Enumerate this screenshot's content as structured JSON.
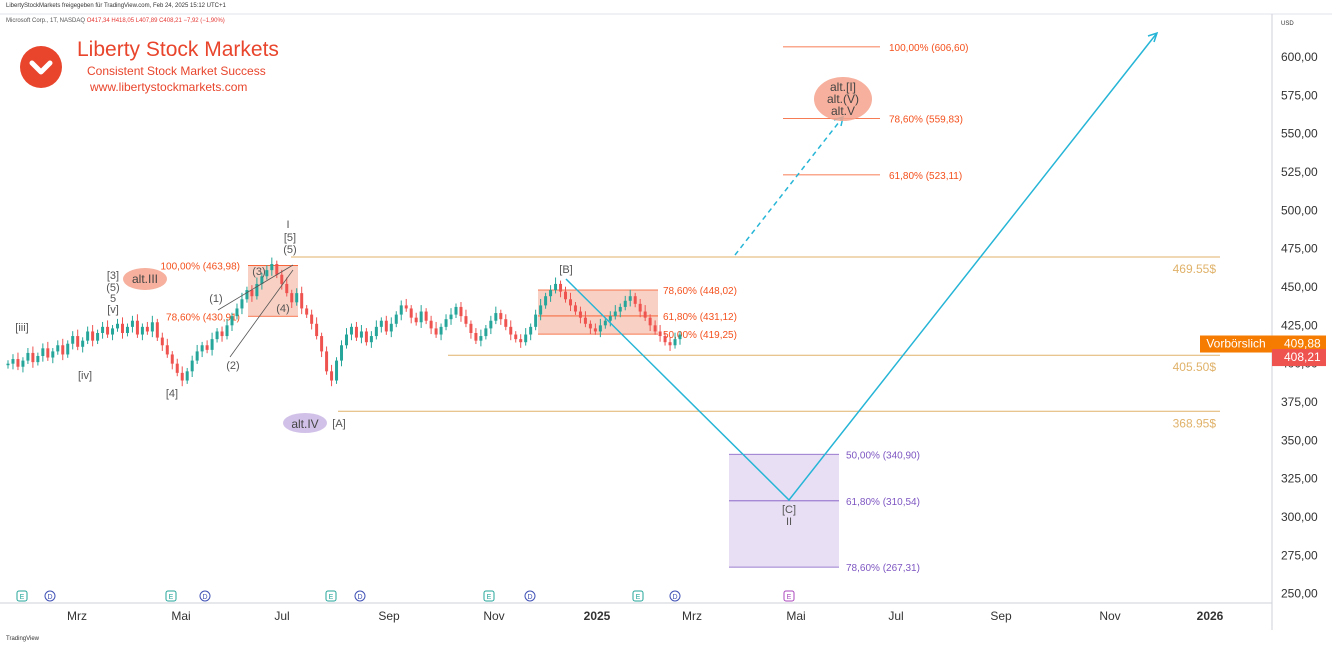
{
  "header": {
    "share_text": "LibertyStockMarkets freigegeben für TradingView.com, Feb 24, 2025 15:12 UTC+1",
    "symbol_text": "Microsoft Corp., 1T, NASDAQ",
    "ohlc_text": "O417,34 H418,05 L407,89 C408,21 −7,92 (−1,90%)"
  },
  "brand": {
    "title": "Liberty Stock Markets",
    "subtitle": "Consistent Stock Market Success",
    "url": "www.libertystockmarkets.com",
    "color": "#e8452c"
  },
  "footer": {
    "tv_label": "TradingView"
  },
  "colors": {
    "up": "#26a69a",
    "down": "#ef5350",
    "projection": "#26b5d6",
    "orange_line": "#e0b26a",
    "fib_red": "#f4511e",
    "fib_purple": "#7e57c2",
    "price_orange": "#f57c00",
    "price_red": "#ef5350"
  },
  "chart_data": {
    "type": "candlestick",
    "currency": "USD",
    "x_ticks": [
      "Mrz",
      "Mai",
      "Jul",
      "Sep",
      "Nov",
      "2025",
      "Mrz",
      "Mai",
      "Jul",
      "Sep",
      "Nov",
      "2026"
    ],
    "y_ticks": [
      "250,00",
      "275,00",
      "300,00",
      "325,00",
      "350,00",
      "375,00",
      "400,00",
      "425,00",
      "450,00",
      "475,00",
      "500,00",
      "525,00",
      "550,00",
      "575,00",
      "600,00"
    ],
    "ylim": [
      240,
      615
    ],
    "price_labels": [
      {
        "text": "Vorbörslich",
        "value": "409,88",
        "color": "#f57c00",
        "y": 409.88
      },
      {
        "text": "",
        "value": "408,21",
        "color": "#ef5350",
        "y": 408.21
      }
    ],
    "horizontal_levels": [
      {
        "label": "469.55$",
        "y": 469.55
      },
      {
        "label": "405.50$",
        "y": 405.5
      },
      {
        "label": "368.95$",
        "y": 368.95
      }
    ],
    "fib_levels": [
      {
        "label": "100,00% (606,60)",
        "y": 606.6,
        "color": "red"
      },
      {
        "label": "78,60% (559,83)",
        "y": 559.83,
        "color": "red"
      },
      {
        "label": "61,80% (523,11)",
        "y": 523.11,
        "color": "red"
      },
      {
        "label": "100,00% (463,98)",
        "y": 463.98,
        "color": "red"
      },
      {
        "label": "78,60% (430,91)",
        "y": 430.91,
        "color": "red"
      },
      {
        "label": "78,60% (448,02)",
        "y": 448.02,
        "color": "red"
      },
      {
        "label": "61,80% (431,12)",
        "y": 431.12,
        "color": "red"
      },
      {
        "label": "50,00% (419,25)",
        "y": 419.25,
        "color": "red"
      },
      {
        "label": "50,00% (340,90)",
        "y": 340.9,
        "color": "purple"
      },
      {
        "label": "61,80% (310,54)",
        "y": 310.54,
        "color": "purple"
      },
      {
        "label": "78,60% (267,31)",
        "y": 267.31,
        "color": "purple"
      }
    ],
    "wave_labels": [
      {
        "text": "[iii]"
      },
      {
        "text": "[iv]"
      },
      {
        "text": "[3]"
      },
      {
        "text": "(5)"
      },
      {
        "text": "5"
      },
      {
        "text": "[v]"
      },
      {
        "text": "[4]"
      },
      {
        "text": "(1)"
      },
      {
        "text": "(2)"
      },
      {
        "text": "(3)"
      },
      {
        "text": "(4)"
      },
      {
        "text": "I"
      },
      {
        "text": "[5]"
      },
      {
        "text": "(5)"
      },
      {
        "text": "[A]"
      },
      {
        "text": "[B]"
      },
      {
        "text": "[C]"
      },
      {
        "text": "II"
      }
    ],
    "alt_labels": [
      {
        "text": "alt.III"
      },
      {
        "text": "alt.IV"
      },
      {
        "text": "alt.[I]"
      },
      {
        "text": "alt.(V)"
      },
      {
        "text": "alt.V"
      }
    ],
    "event_markers": [
      "E",
      "D",
      "E",
      "D",
      "E",
      "D",
      "E",
      "D",
      "E",
      "D",
      "E"
    ],
    "price_path": [
      400,
      403,
      398,
      402,
      407,
      401,
      405,
      410,
      404,
      408,
      412,
      406,
      413,
      418,
      411,
      415,
      421,
      415,
      420,
      424,
      419,
      423,
      426,
      420,
      424,
      428,
      419,
      424,
      421,
      427,
      417,
      412,
      406,
      400,
      394,
      389,
      395,
      402,
      408,
      412,
      409,
      416,
      421,
      418,
      425,
      431,
      436,
      442,
      448,
      444,
      452,
      457,
      461,
      465,
      458,
      452,
      446,
      440,
      446,
      436,
      432,
      426,
      418,
      408,
      395,
      389,
      402,
      412,
      419,
      424,
      417,
      421,
      414,
      418,
      424,
      428,
      421,
      426,
      432,
      438,
      436,
      430,
      427,
      434,
      428,
      423,
      419,
      424,
      429,
      432,
      437,
      431,
      426,
      420,
      415,
      418,
      423,
      428,
      433,
      429,
      424,
      419,
      416,
      414,
      419,
      424,
      432,
      438,
      444,
      448,
      452,
      447,
      442,
      438,
      434,
      430,
      426,
      423,
      421,
      425,
      428,
      431,
      434,
      437,
      441,
      444,
      439,
      434,
      430,
      425,
      421,
      418,
      414,
      412,
      416,
      419
    ]
  }
}
